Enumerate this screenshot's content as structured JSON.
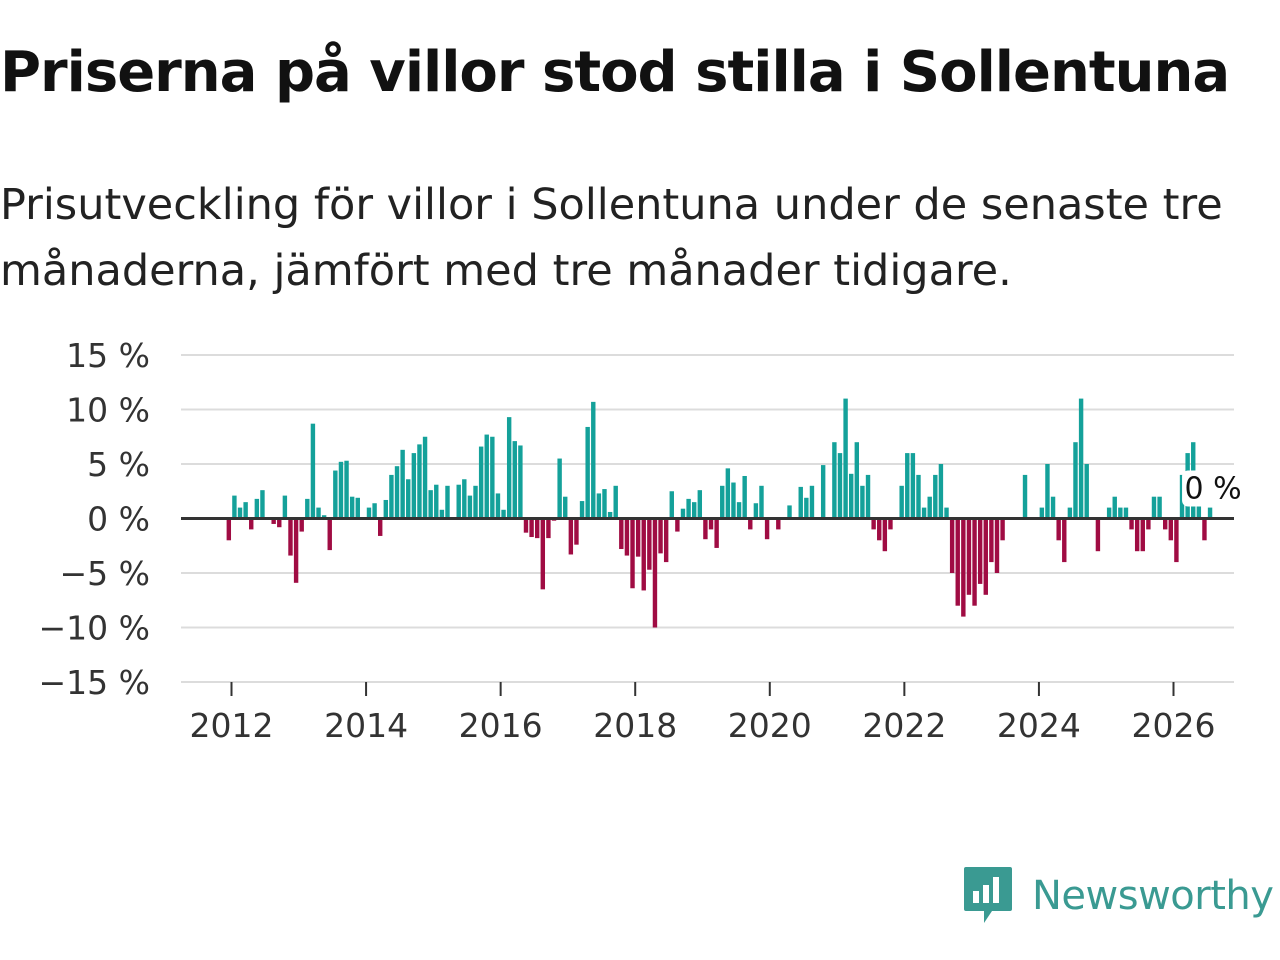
{
  "header": {
    "title": "Priserna på villor stod stilla i Sollentuna",
    "subtitle": "Prisutveckling för villor i Sollentuna under de senaste tre månaderna, jämfört med tre månader tidigare."
  },
  "brand": {
    "name": "Newsworthy"
  },
  "colors": {
    "positive": "#14a19a",
    "negative": "#a00c43",
    "grid": "#dcdcdc",
    "zero": "#333333",
    "brand": "#3a9a92"
  },
  "chart_data": {
    "type": "bar",
    "title": "Priserna på villor stod stilla i Sollentuna",
    "xlabel": "",
    "ylabel": "",
    "x_start": 2011.96,
    "step": 0.0833333,
    "ylim": [
      -15,
      15
    ],
    "y_ticks": [
      15,
      10,
      5,
      0,
      -5,
      -10,
      -15
    ],
    "y_tick_labels": [
      "15 %",
      "10 %",
      "5 %",
      "0 %",
      "−5 %",
      "−10 %",
      "−15 %"
    ],
    "x_ticks": [
      2012,
      2014,
      2016,
      2018,
      2020,
      2022,
      2024,
      2026
    ],
    "x_tick_labels": [
      "2012",
      "2014",
      "2016",
      "2018",
      "2020",
      "2022",
      "2024",
      "2026"
    ],
    "annotation": {
      "label": "0 %",
      "value": 0
    },
    "values": [
      -2,
      2.1,
      1,
      1.5,
      -1,
      1.8,
      2.6,
      0,
      -0.5,
      -0.8,
      2.1,
      -3.4,
      -5.9,
      -1.2,
      1.8,
      8.7,
      1,
      0.3,
      -2.9,
      4.4,
      5.2,
      5.3,
      2,
      1.9,
      0,
      1,
      1.4,
      -1.6,
      1.7,
      4,
      4.8,
      6.3,
      3.6,
      6,
      6.8,
      7.5,
      2.6,
      3.1,
      0.8,
      3,
      0,
      3.1,
      3.6,
      2.1,
      3,
      6.6,
      7.7,
      7.5,
      2.3,
      0.8,
      9.3,
      7.1,
      6.7,
      -1.3,
      -1.7,
      -1.8,
      -6.5,
      -1.8,
      -0.2,
      5.5,
      2,
      -3.3,
      -2.4,
      1.6,
      8.4,
      10.7,
      2.3,
      2.7,
      0.6,
      3,
      -2.8,
      -3.4,
      -6.4,
      -3.5,
      -6.6,
      -4.7,
      -10,
      -3.2,
      -4,
      2.5,
      -1.2,
      0.9,
      1.8,
      1.5,
      2.6,
      -1.9,
      -1,
      -2.7,
      3,
      4.6,
      3.3,
      1.5,
      3.9,
      -1,
      1.4,
      3,
      -1.9,
      0,
      -1,
      0,
      1.2,
      0,
      2.9,
      1.9,
      3,
      0,
      4.9,
      0,
      7,
      6,
      11,
      4.1,
      7,
      3,
      4,
      -1,
      -2,
      -3,
      -1,
      0,
      3,
      6,
      6,
      4,
      1,
      2,
      4,
      5,
      1,
      -5,
      -8,
      -9,
      -7,
      -8,
      -6,
      -7,
      -4,
      -5,
      -2,
      0,
      0,
      0,
      4,
      0,
      0,
      1,
      5,
      2,
      -2,
      -4,
      1,
      7,
      11,
      5,
      0,
      -3,
      0,
      1,
      2,
      1,
      1,
      -1,
      -3,
      -3,
      -1,
      2,
      2,
      -1,
      -2,
      -4,
      4,
      6,
      7,
      1.4,
      -2,
      1
    ]
  }
}
